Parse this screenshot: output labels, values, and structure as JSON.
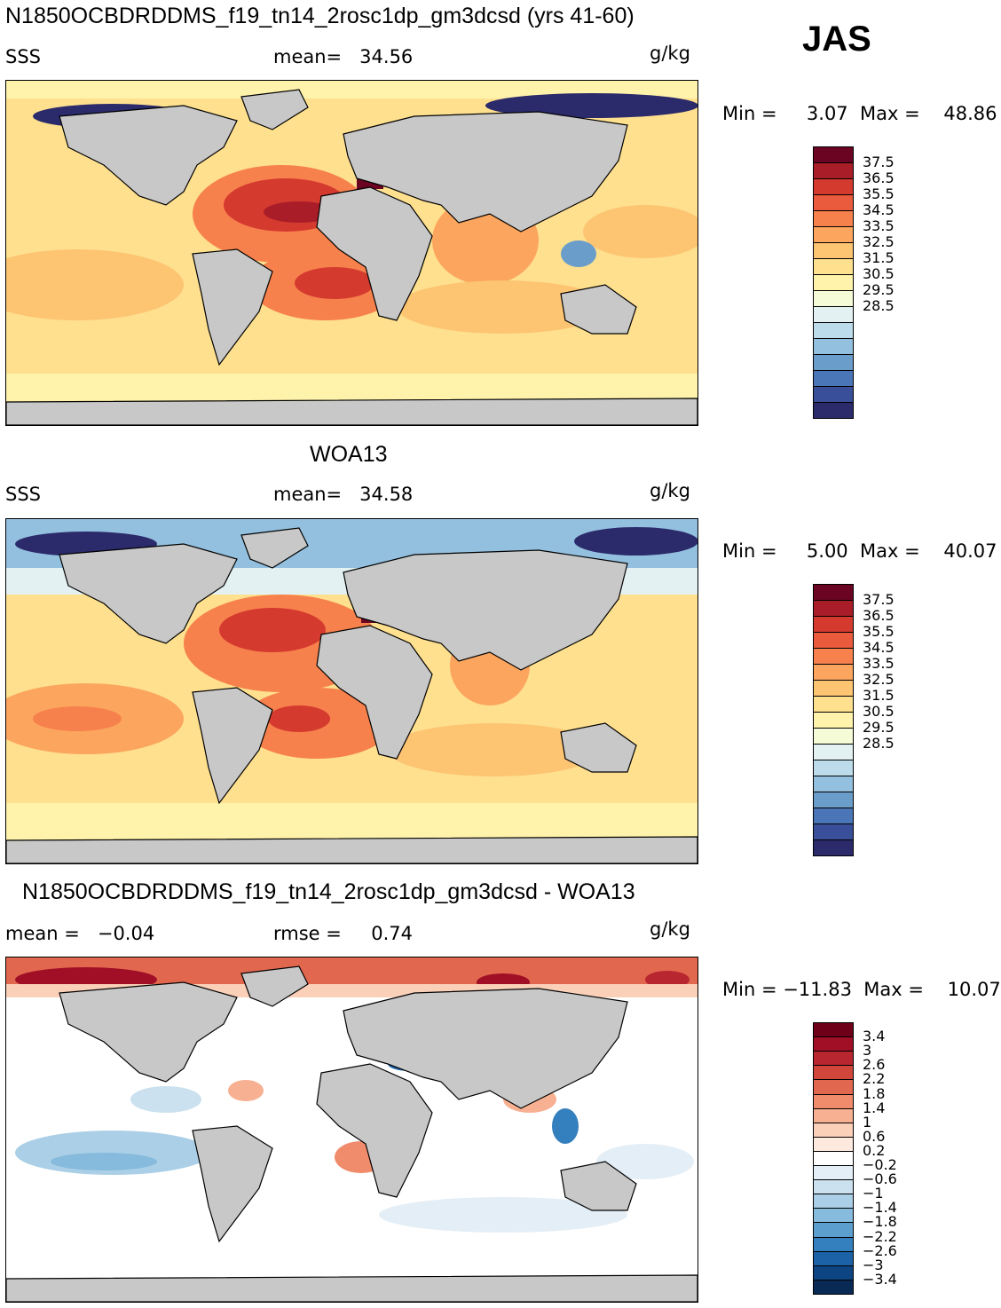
{
  "season": "JAS",
  "units": "g/kg",
  "panels": [
    {
      "title": "N1850OCBDRDDMS_f19_tn14_2rosc1dp_gm3dcsd (yrs 41-60)",
      "variable": "SSS",
      "stat_text": "mean=   34.56",
      "units": "g/kg",
      "range_text": "Min =     3.07  Max =    48.86",
      "colorbar_labels": [
        "37.5",
        "36.5",
        "35.5",
        "34.5",
        "33.5",
        "32.5",
        "31.5",
        "30.5",
        "29.5",
        "28.5"
      ]
    },
    {
      "title": "WOA13",
      "variable": "SSS",
      "stat_text": "mean=   34.58",
      "units": "g/kg",
      "range_text": "Min =     5.00  Max =    40.07",
      "colorbar_labels": [
        "37.5",
        "36.5",
        "35.5",
        "34.5",
        "33.5",
        "32.5",
        "31.5",
        "30.5",
        "29.5",
        "28.5"
      ]
    },
    {
      "title": "N1850OCBDRDDMS_f19_tn14_2rosc1dp_gm3dcsd - WOA13",
      "mean_text": "mean =   −0.04",
      "rmse_text": "rmse =     0.74",
      "units": "g/kg",
      "range_text": "Min = −11.83  Max =    10.07",
      "colorbar_labels": [
        "3.4",
        "3",
        "2.6",
        "2.2",
        "1.8",
        "1.4",
        "1",
        "0.6",
        "0.2",
        "−0.2",
        "−0.6",
        "−1",
        "−1.4",
        "−1.8",
        "−2.2",
        "−2.6",
        "−3",
        "−3.4"
      ]
    }
  ],
  "chart_data": [
    {
      "type": "heatmap",
      "title": "N1850OCBDRDDMS_f19_tn14_2rosc1dp_gm3dcsd (yrs 41-60)",
      "variable": "SSS",
      "units": "g/kg",
      "mean": 34.56,
      "min": 3.07,
      "max": 48.86,
      "colorbar": [
        "28.5",
        "29.5",
        "30.5",
        "31.5",
        "32.5",
        "33.5",
        "34.5",
        "35.5",
        "36.5",
        "37.5"
      ],
      "colors": [
        "#2b2a6b",
        "#3a4f9a",
        "#4a76b8",
        "#6b9dcb",
        "#93c0de",
        "#bcdcec",
        "#e3f1f2",
        "#f5fbd6",
        "#fff2ab",
        "#fee08f",
        "#fdc472",
        "#fca55e",
        "#f7814c",
        "#ea5a3c",
        "#d53a2f",
        "#a81d28",
        "#6b0422"
      ]
    },
    {
      "type": "heatmap",
      "title": "WOA13",
      "variable": "SSS",
      "units": "g/kg",
      "mean": 34.58,
      "min": 5.0,
      "max": 40.07,
      "colorbar": [
        "28.5",
        "29.5",
        "30.5",
        "31.5",
        "32.5",
        "33.5",
        "34.5",
        "35.5",
        "36.5",
        "37.5"
      ],
      "colors": [
        "#2b2a6b",
        "#3a4f9a",
        "#4a76b8",
        "#6b9dcb",
        "#93c0de",
        "#bcdcec",
        "#e3f1f2",
        "#f5fbd6",
        "#fff2ab",
        "#fee08f",
        "#fdc472",
        "#fca55e",
        "#f7814c",
        "#ea5a3c",
        "#d53a2f",
        "#a81d28",
        "#6b0422"
      ]
    },
    {
      "type": "heatmap",
      "title": "N1850OCBDRDDMS_f19_tn14_2rosc1dp_gm3dcsd - WOA13",
      "units": "g/kg",
      "mean": -0.04,
      "rmse": 0.74,
      "min": -11.83,
      "max": 10.07,
      "colorbar": [
        "-3.4",
        "-3",
        "-2.6",
        "-2.2",
        "-1.8",
        "-1.4",
        "-1",
        "-0.6",
        "-0.2",
        "0.2",
        "0.6",
        "1",
        "1.4",
        "1.8",
        "2.2",
        "2.6",
        "3",
        "3.4"
      ],
      "colors": [
        "#082a54",
        "#0d4583",
        "#1b62a6",
        "#3480be",
        "#5c9fcf",
        "#86bbdd",
        "#abcfe6",
        "#cbe1ef",
        "#e3eef6",
        "#ffffff",
        "#fde9de",
        "#fbd0b8",
        "#f7b091",
        "#f08c6c",
        "#e2674f",
        "#d0463b",
        "#b8262f",
        "#a00f26",
        "#6e0019"
      ]
    }
  ],
  "land_color": "#c8c8c8"
}
